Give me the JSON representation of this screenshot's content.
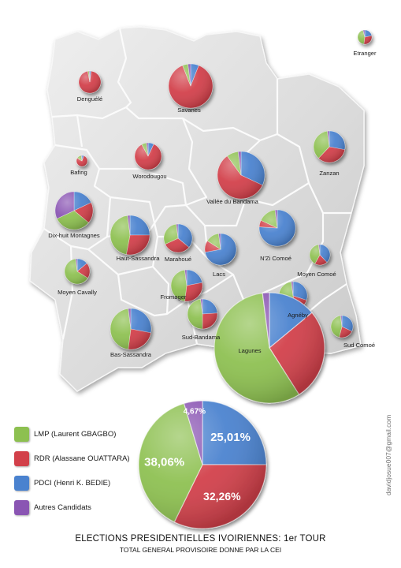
{
  "title": "ELECTIONS PRESIDENTIELLES IVOIRIENNES: 1er TOUR",
  "subtitle": "TOTAL GENERAL PROVISOIRE DONNE PAR LA CEI",
  "credit": "davidjosue007@gmail.com",
  "colors": {
    "LMP": "#8dc050",
    "RDR": "#d2404a",
    "PDCI": "#4a82cf",
    "AUTRES": "#8a55b3"
  },
  "legend": [
    {
      "key": "LMP",
      "label": "LMP (Laurent GBAGBO)",
      "color": "#8dc050"
    },
    {
      "key": "RDR",
      "label": "RDR (Alassane OUATTARA)",
      "color": "#d2404a"
    },
    {
      "key": "PDCI",
      "label": "PDCI (Henri K. BEDIE)",
      "color": "#4a82cf"
    },
    {
      "key": "AUTRES",
      "label": "Autres Candidats",
      "color": "#8a55b3"
    }
  ],
  "national": {
    "results": [
      {
        "key": "PDCI",
        "value": 25.01,
        "label": "25,01%"
      },
      {
        "key": "RDR",
        "value": 32.26,
        "label": "32,26%"
      },
      {
        "key": "LMP",
        "value": 38.06,
        "label": "38,06%"
      },
      {
        "key": "AUTRES",
        "value": 4.67,
        "label": "4,67%"
      }
    ]
  },
  "regions": [
    {
      "id": "etranger",
      "name": "Etranger",
      "shares": {
        "LMP": 44,
        "RDR": 30,
        "PDCI": 22,
        "AUTRES": 4
      }
    },
    {
      "id": "denguele",
      "name": "Denguélé",
      "shares": {
        "LMP": 2,
        "RDR": 95,
        "PDCI": 2,
        "AUTRES": 1
      }
    },
    {
      "id": "savanes",
      "name": "Savanes",
      "shares": {
        "LMP": 4,
        "RDR": 88,
        "PDCI": 6,
        "AUTRES": 2
      }
    },
    {
      "id": "bafing",
      "name": "Bafing",
      "shares": {
        "LMP": 14,
        "RDR": 78,
        "PDCI": 6,
        "AUTRES": 2
      }
    },
    {
      "id": "worodougou",
      "name": "Worodougou",
      "shares": {
        "LMP": 6,
        "RDR": 85,
        "PDCI": 7,
        "AUTRES": 2
      }
    },
    {
      "id": "zanzan",
      "name": "Zanzan",
      "shares": {
        "LMP": 36,
        "RDR": 34,
        "PDCI": 28,
        "AUTRES": 2
      }
    },
    {
      "id": "vallee",
      "name": "Vallée du Bandama",
      "shares": {
        "LMP": 8,
        "RDR": 58,
        "PDCI": 32,
        "AUTRES": 2
      }
    },
    {
      "id": "dixhuit",
      "name": "Dix-huit Montagnes",
      "shares": {
        "LMP": 32,
        "RDR": 18,
        "PDCI": 18,
        "AUTRES": 32
      }
    },
    {
      "id": "hautsassandra",
      "name": "Haut-Sassandra",
      "shares": {
        "LMP": 45,
        "RDR": 28,
        "PDCI": 25,
        "AUTRES": 2
      }
    },
    {
      "id": "marahoue",
      "name": "Marahoué",
      "shares": {
        "LMP": 30,
        "RDR": 32,
        "PDCI": 36,
        "AUTRES": 2
      }
    },
    {
      "id": "lacs",
      "name": "Lacs",
      "shares": {
        "LMP": 14,
        "RDR": 12,
        "PDCI": 72,
        "AUTRES": 2
      }
    },
    {
      "id": "nzicomoe",
      "name": "N'Zi Comoé",
      "shares": {
        "LMP": 16,
        "RDR": 6,
        "PDCI": 76,
        "AUTRES": 2
      }
    },
    {
      "id": "moyencomoe",
      "name": "Moyen Comoé",
      "shares": {
        "LMP": 40,
        "RDR": 20,
        "PDCI": 38,
        "AUTRES": 2
      }
    },
    {
      "id": "moyencavally",
      "name": "Moyen Cavally",
      "shares": {
        "LMP": 64,
        "RDR": 20,
        "PDCI": 14,
        "AUTRES": 2
      }
    },
    {
      "id": "fromager",
      "name": "Fromager",
      "shares": {
        "LMP": 46,
        "RDR": 30,
        "PDCI": 22,
        "AUTRES": 2
      }
    },
    {
      "id": "agneby",
      "name": "Agnéby",
      "shares": {
        "LMP": 50,
        "RDR": 18,
        "PDCI": 30,
        "AUTRES": 2
      }
    },
    {
      "id": "sudbandama",
      "name": "Sud-Bandama",
      "shares": {
        "LMP": 48,
        "RDR": 26,
        "PDCI": 24,
        "AUTRES": 2
      }
    },
    {
      "id": "bassassandra",
      "name": "Bas-Sassandra",
      "shares": {
        "LMP": 46,
        "RDR": 24,
        "PDCI": 28,
        "AUTRES": 2
      }
    },
    {
      "id": "lagunes",
      "name": "Lagunes",
      "shares": {
        "LMP": 57,
        "RDR": 27,
        "PDCI": 14,
        "AUTRES": 2
      }
    },
    {
      "id": "sudcomoe",
      "name": "Sud Comoé",
      "shares": {
        "LMP": 44,
        "RDR": 22,
        "PDCI": 32,
        "AUTRES": 2
      }
    }
  ]
}
